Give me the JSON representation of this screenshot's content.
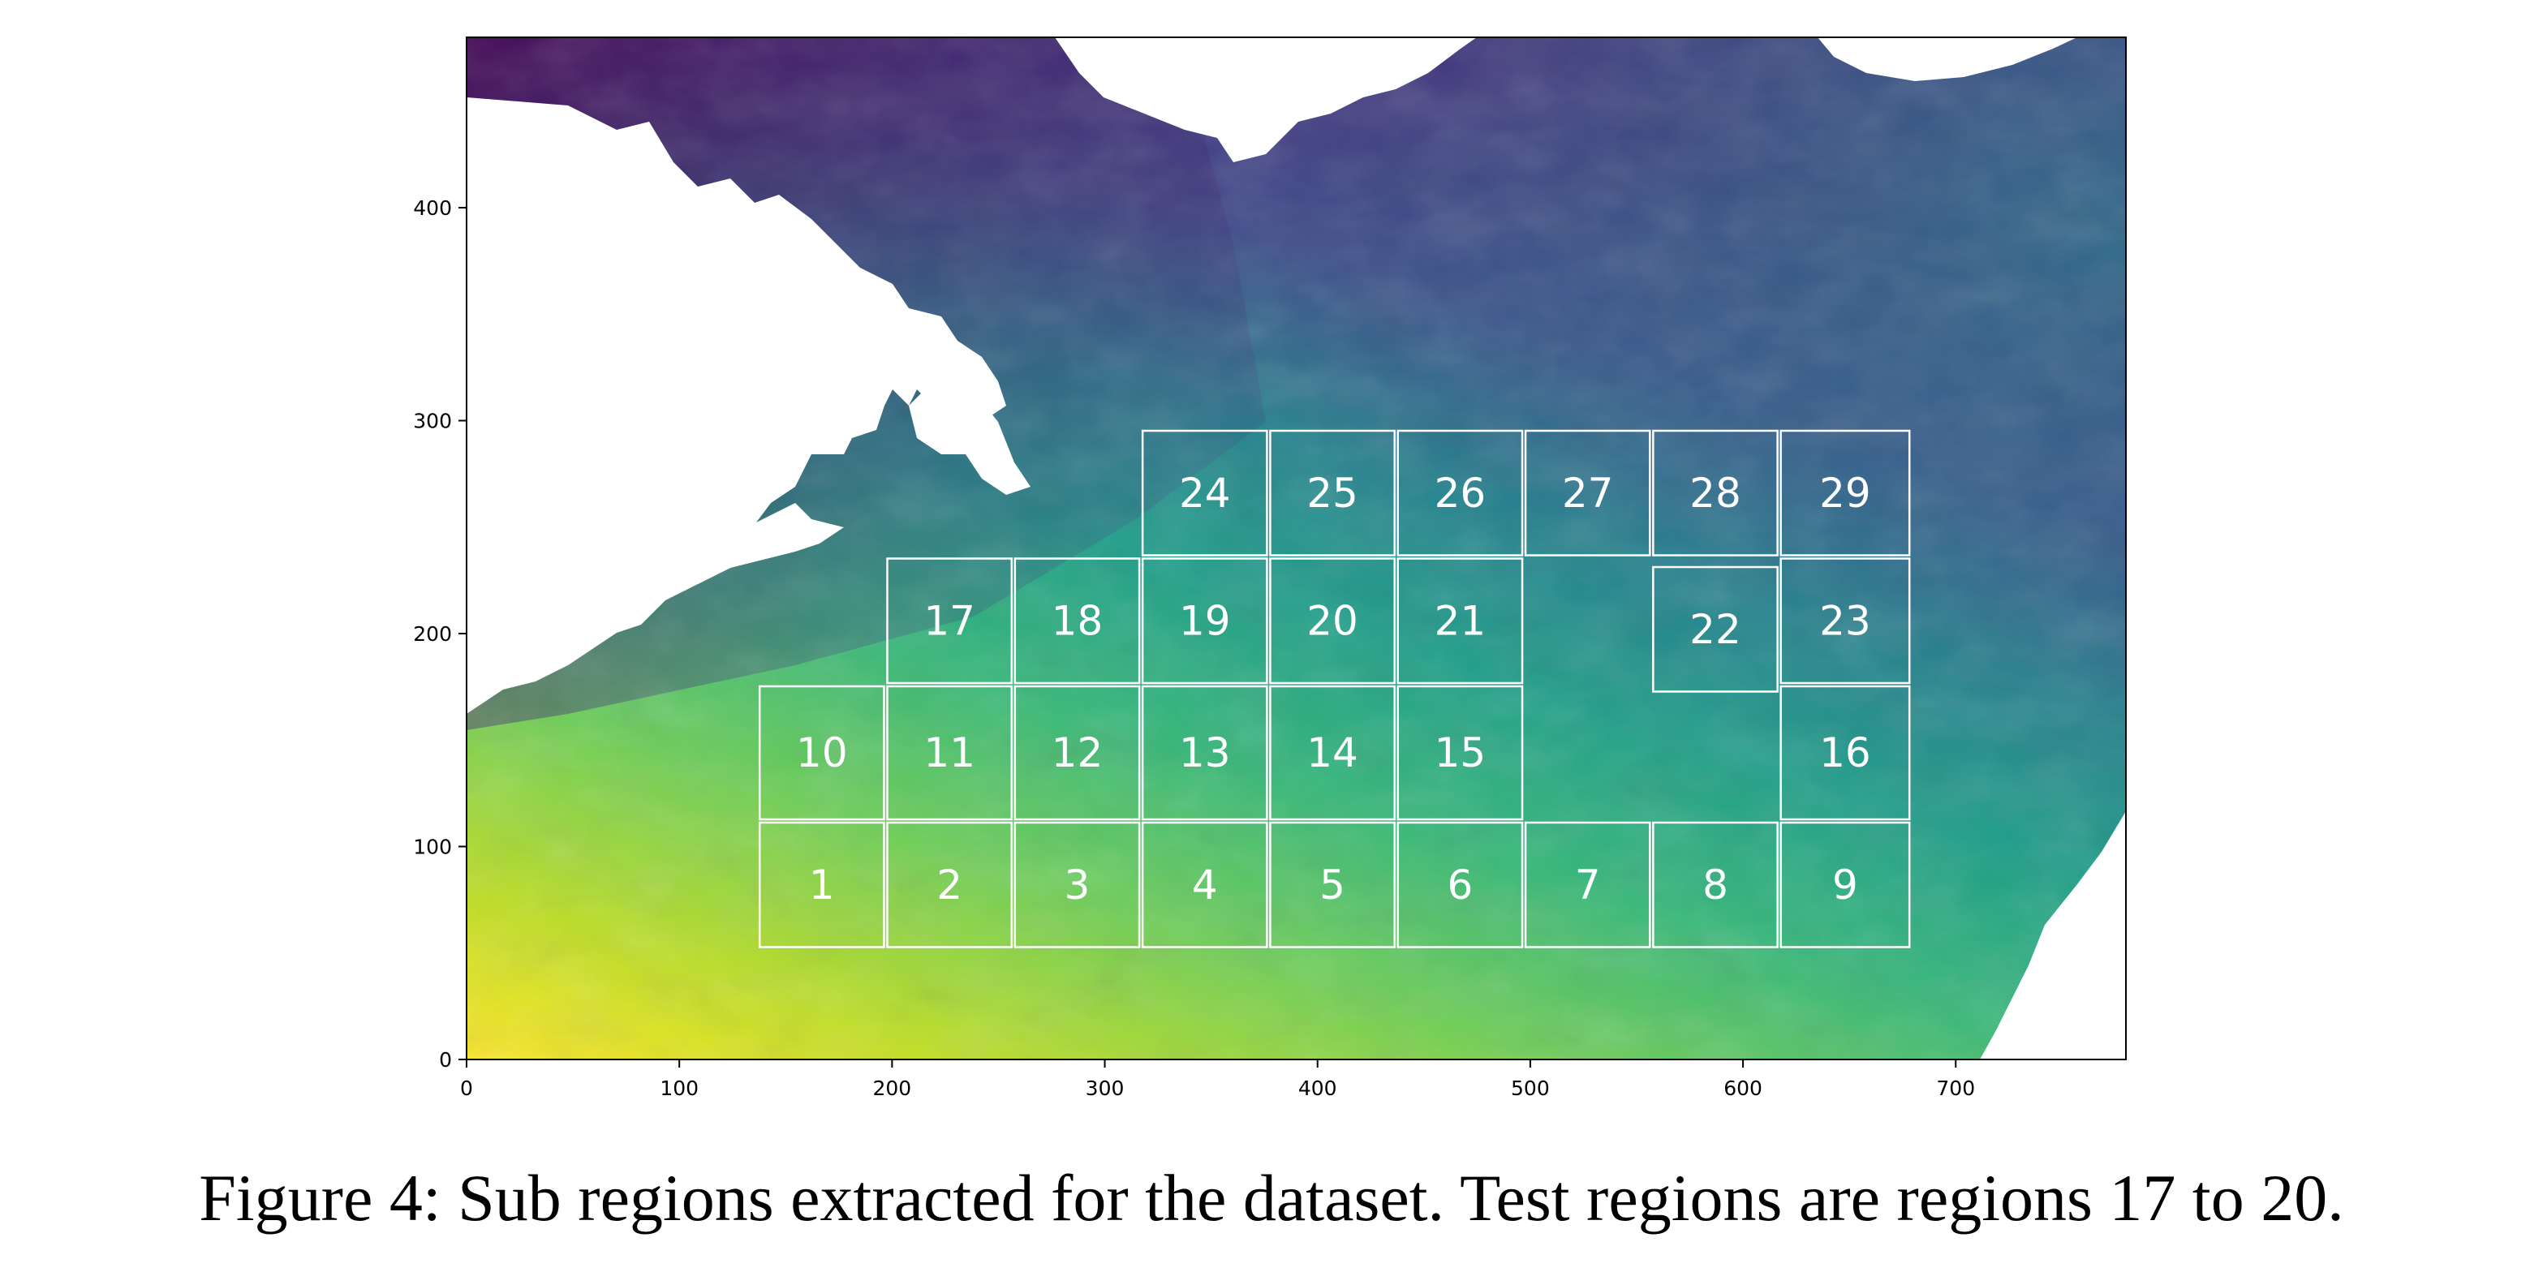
{
  "caption": "Figure 4: Sub regions extracted for the dataset. Test regions are regions 17 to 20.",
  "chart_data": {
    "type": "heatmap",
    "title": "",
    "xlabel": "",
    "ylabel": "",
    "xlim": [
      0,
      780
    ],
    "ylim": [
      0,
      480
    ],
    "xticks": [
      0,
      100,
      200,
      300,
      400,
      500,
      600,
      700
    ],
    "yticks": [
      0,
      100,
      200,
      300,
      400
    ],
    "colormap": "viridis",
    "land_color": "#ffffff",
    "box_color": "#ffffff",
    "regions": [
      {
        "label": "1",
        "x0": 137,
        "y0": 52,
        "x1": 197,
        "y1": 112
      },
      {
        "label": "2",
        "x0": 197,
        "y0": 52,
        "x1": 257,
        "y1": 112
      },
      {
        "label": "3",
        "x0": 257,
        "y0": 52,
        "x1": 317,
        "y1": 112
      },
      {
        "label": "4",
        "x0": 317,
        "y0": 52,
        "x1": 377,
        "y1": 112
      },
      {
        "label": "5",
        "x0": 377,
        "y0": 52,
        "x1": 437,
        "y1": 112
      },
      {
        "label": "6",
        "x0": 437,
        "y0": 52,
        "x1": 497,
        "y1": 112
      },
      {
        "label": "7",
        "x0": 497,
        "y0": 52,
        "x1": 557,
        "y1": 112
      },
      {
        "label": "8",
        "x0": 557,
        "y0": 52,
        "x1": 617,
        "y1": 112
      },
      {
        "label": "9",
        "x0": 617,
        "y0": 52,
        "x1": 679,
        "y1": 112
      },
      {
        "label": "10",
        "x0": 137,
        "y0": 112,
        "x1": 197,
        "y1": 176
      },
      {
        "label": "11",
        "x0": 197,
        "y0": 112,
        "x1": 257,
        "y1": 176
      },
      {
        "label": "12",
        "x0": 257,
        "y0": 112,
        "x1": 317,
        "y1": 176
      },
      {
        "label": "13",
        "x0": 317,
        "y0": 112,
        "x1": 377,
        "y1": 176
      },
      {
        "label": "14",
        "x0": 377,
        "y0": 112,
        "x1": 437,
        "y1": 176
      },
      {
        "label": "15",
        "x0": 437,
        "y0": 112,
        "x1": 497,
        "y1": 176
      },
      {
        "label": "16",
        "x0": 617,
        "y0": 112,
        "x1": 679,
        "y1": 176
      },
      {
        "label": "17",
        "x0": 197,
        "y0": 176,
        "x1": 257,
        "y1": 236
      },
      {
        "label": "18",
        "x0": 257,
        "y0": 176,
        "x1": 317,
        "y1": 236
      },
      {
        "label": "19",
        "x0": 317,
        "y0": 176,
        "x1": 377,
        "y1": 236
      },
      {
        "label": "20",
        "x0": 377,
        "y0": 176,
        "x1": 437,
        "y1": 236
      },
      {
        "label": "21",
        "x0": 437,
        "y0": 176,
        "x1": 497,
        "y1": 236
      },
      {
        "label": "22",
        "x0": 557,
        "y0": 172,
        "x1": 617,
        "y1": 232
      },
      {
        "label": "23",
        "x0": 617,
        "y0": 176,
        "x1": 679,
        "y1": 236
      },
      {
        "label": "24",
        "x0": 317,
        "y0": 236,
        "x1": 377,
        "y1": 296
      },
      {
        "label": "25",
        "x0": 377,
        "y0": 236,
        "x1": 437,
        "y1": 296
      },
      {
        "label": "26",
        "x0": 437,
        "y0": 236,
        "x1": 497,
        "y1": 296
      },
      {
        "label": "27",
        "x0": 497,
        "y0": 236,
        "x1": 557,
        "y1": 296
      },
      {
        "label": "28",
        "x0": 557,
        "y0": 236,
        "x1": 617,
        "y1": 296
      },
      {
        "label": "29",
        "x0": 617,
        "y0": 236,
        "x1": 679,
        "y1": 296
      }
    ]
  }
}
